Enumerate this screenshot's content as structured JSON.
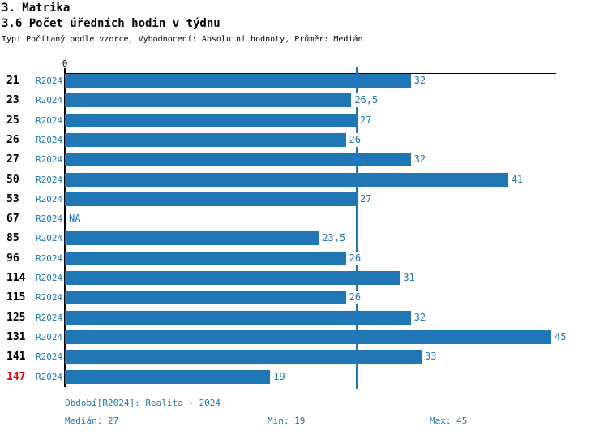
{
  "header": {
    "title": "3. Matrika",
    "subtitle": "3.6 Počet úředních hodin v týdnu",
    "meta": "Typ: Počítaný podle vzorce, Vyhodnocení: Absolutní hodnoty, Průměr: Medián"
  },
  "colors": {
    "bar": "#2077b5",
    "blue_text": "#1f77b4",
    "red_text": "#e60000",
    "axis": "#000000"
  },
  "chart_data": {
    "type": "bar",
    "orientation": "horizontal",
    "categories": [
      "21",
      "23",
      "25",
      "26",
      "27",
      "50",
      "53",
      "67",
      "85",
      "96",
      "114",
      "115",
      "125",
      "131",
      "141",
      "147"
    ],
    "series_label": "R2024",
    "values": [
      32,
      26.5,
      27,
      26,
      32,
      41,
      27,
      null,
      23.5,
      26,
      31,
      26,
      32,
      45,
      33,
      19
    ],
    "value_labels": [
      "32",
      "26,5",
      "27",
      "26",
      "32",
      "41",
      "27",
      "NA",
      "23,5",
      "26",
      "31",
      "26",
      "32",
      "45",
      "33",
      "19"
    ],
    "highlighted_category": "147",
    "axis_tick_label": "0",
    "xlim": [
      0,
      45.5
    ],
    "median_line": 27,
    "grid": false,
    "legend_position": "none"
  },
  "footer": {
    "period": "Období[R2024]: Realita - 2024",
    "median": "Medián: 27",
    "min": "Min: 19",
    "max": "Max: 45"
  }
}
